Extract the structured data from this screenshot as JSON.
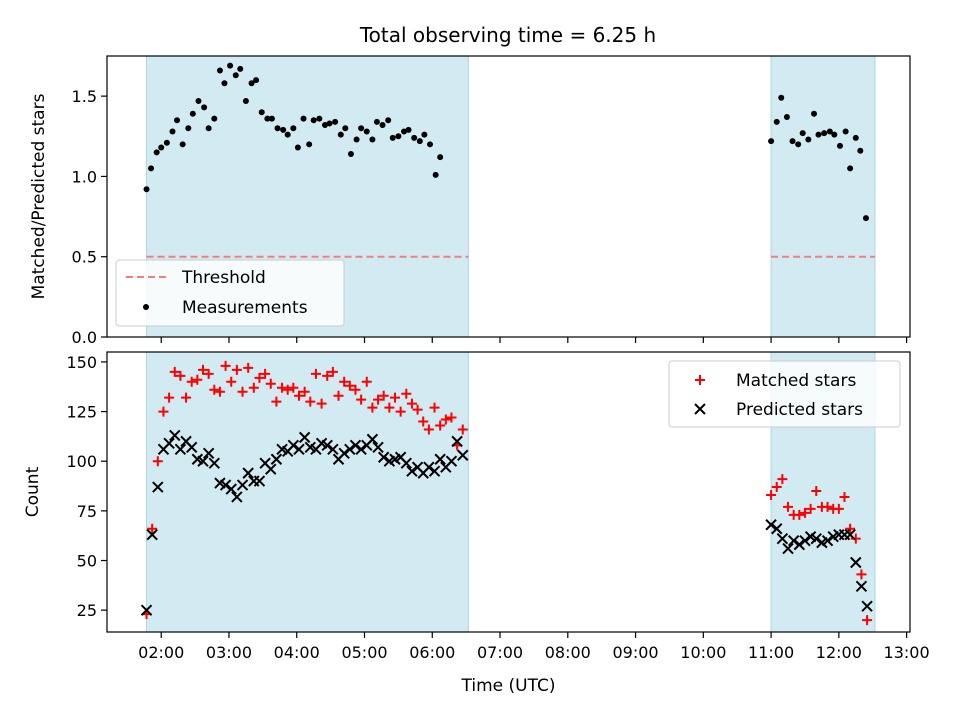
{
  "title": "Total observing time = 6.25 h",
  "colors": {
    "band": "#add8e6",
    "threshold": "#f08080",
    "matched": "#ff0000",
    "predicted": "#000000"
  },
  "chart_data": [
    {
      "type": "scatter",
      "panel": "top",
      "xlabel": "",
      "ylabel": "Matched/Predicted stars",
      "xlim": [
        "01:12",
        "13:03"
      ],
      "ylim": [
        0,
        1.75
      ],
      "yticks": [
        0.0,
        0.5,
        1.0,
        1.5
      ],
      "ytick_labels": [
        "0.0",
        "0.5",
        "1.0",
        "1.5"
      ],
      "shaded_intervals": [
        [
          "01:47",
          "06:32"
        ],
        [
          "11:00",
          "12:32"
        ]
      ],
      "legend": {
        "position": "lower-left"
      },
      "series": [
        {
          "name": "Threshold",
          "kind": "dashed-line",
          "segments": [
            {
              "x": [
                "01:47",
                "06:32"
              ],
              "y": [
                0.5,
                0.5
              ]
            },
            {
              "x": [
                "11:00",
                "12:32"
              ],
              "y": [
                0.5,
                0.5
              ]
            }
          ]
        },
        {
          "name": "Measurements",
          "kind": "dot",
          "points": [
            [
              "01:47",
              0.92
            ],
            [
              "01:51",
              1.05
            ],
            [
              "01:56",
              1.15
            ],
            [
              "02:00",
              1.18
            ],
            [
              "02:05",
              1.21
            ],
            [
              "02:10",
              1.28
            ],
            [
              "02:14",
              1.35
            ],
            [
              "02:19",
              1.2
            ],
            [
              "02:24",
              1.3
            ],
            [
              "02:28",
              1.39
            ],
            [
              "02:33",
              1.47
            ],
            [
              "02:38",
              1.43
            ],
            [
              "02:42",
              1.3
            ],
            [
              "02:47",
              1.36
            ],
            [
              "02:52",
              1.66
            ],
            [
              "02:56",
              1.58
            ],
            [
              "03:01",
              1.69
            ],
            [
              "03:06",
              1.63
            ],
            [
              "03:10",
              1.67
            ],
            [
              "03:15",
              1.47
            ],
            [
              "03:20",
              1.58
            ],
            [
              "03:24",
              1.6
            ],
            [
              "03:29",
              1.4
            ],
            [
              "03:34",
              1.36
            ],
            [
              "03:38",
              1.36
            ],
            [
              "03:43",
              1.3
            ],
            [
              "03:48",
              1.29
            ],
            [
              "03:52",
              1.26
            ],
            [
              "03:57",
              1.3
            ],
            [
              "04:01",
              1.18
            ],
            [
              "04:06",
              1.36
            ],
            [
              "04:11",
              1.2
            ],
            [
              "04:15",
              1.35
            ],
            [
              "04:20",
              1.36
            ],
            [
              "04:25",
              1.32
            ],
            [
              "04:29",
              1.33
            ],
            [
              "04:34",
              1.34
            ],
            [
              "04:39",
              1.26
            ],
            [
              "04:43",
              1.3
            ],
            [
              "04:48",
              1.14
            ],
            [
              "04:53",
              1.23
            ],
            [
              "04:57",
              1.3
            ],
            [
              "05:02",
              1.28
            ],
            [
              "05:07",
              1.23
            ],
            [
              "05:11",
              1.34
            ],
            [
              "05:16",
              1.32
            ],
            [
              "05:21",
              1.35
            ],
            [
              "05:25",
              1.24
            ],
            [
              "05:30",
              1.25
            ],
            [
              "05:35",
              1.28
            ],
            [
              "05:39",
              1.29
            ],
            [
              "05:44",
              1.24
            ],
            [
              "05:49",
              1.22
            ],
            [
              "05:53",
              1.26
            ],
            [
              "05:58",
              1.2
            ],
            [
              "06:03",
              1.01
            ],
            [
              "06:07",
              1.12
            ],
            [
              "11:00",
              1.22
            ],
            [
              "11:05",
              1.34
            ],
            [
              "11:09",
              1.49
            ],
            [
              "11:14",
              1.37
            ],
            [
              "11:19",
              1.22
            ],
            [
              "11:24",
              1.2
            ],
            [
              "11:28",
              1.27
            ],
            [
              "11:33",
              1.23
            ],
            [
              "11:38",
              1.39
            ],
            [
              "11:42",
              1.26
            ],
            [
              "11:47",
              1.27
            ],
            [
              "11:52",
              1.28
            ],
            [
              "11:56",
              1.26
            ],
            [
              "12:01",
              1.19
            ],
            [
              "12:06",
              1.28
            ],
            [
              "12:10",
              1.05
            ],
            [
              "12:15",
              1.24
            ],
            [
              "12:19",
              1.16
            ],
            [
              "12:24",
              0.74
            ]
          ]
        }
      ]
    },
    {
      "type": "scatter",
      "panel": "bottom",
      "xlabel": "Time (UTC)",
      "ylabel": "Count",
      "xlim": [
        "01:12",
        "13:03"
      ],
      "ylim": [
        14,
        155
      ],
      "xticks": [
        "02:00",
        "03:00",
        "04:00",
        "05:00",
        "06:00",
        "07:00",
        "08:00",
        "09:00",
        "10:00",
        "11:00",
        "12:00",
        "13:00"
      ],
      "yticks": [
        25,
        50,
        75,
        100,
        125,
        150
      ],
      "ytick_labels": [
        "25",
        "50",
        "75",
        "100",
        "125",
        "150"
      ],
      "shaded_intervals": [
        [
          "01:47",
          "06:32"
        ],
        [
          "11:00",
          "12:32"
        ]
      ],
      "legend": {
        "position": "top-right"
      },
      "series": [
        {
          "name": "Matched stars",
          "kind": "plus",
          "points": [
            [
              "01:47",
              23
            ],
            [
              "01:52",
              66
            ],
            [
              "01:57",
              100
            ],
            [
              "02:02",
              125
            ],
            [
              "02:07",
              132
            ],
            [
              "02:12",
              145
            ],
            [
              "02:17",
              143
            ],
            [
              "02:22",
              132
            ],
            [
              "02:27",
              140
            ],
            [
              "02:32",
              141
            ],
            [
              "02:37",
              146
            ],
            [
              "02:42",
              144
            ],
            [
              "02:47",
              136
            ],
            [
              "02:52",
              135
            ],
            [
              "02:57",
              148
            ],
            [
              "03:02",
              140
            ],
            [
              "03:07",
              146
            ],
            [
              "03:12",
              135
            ],
            [
              "03:17",
              147
            ],
            [
              "03:22",
              137
            ],
            [
              "03:27",
              142
            ],
            [
              "03:32",
              144
            ],
            [
              "03:37",
              139
            ],
            [
              "03:42",
              130
            ],
            [
              "03:47",
              137
            ],
            [
              "03:52",
              136
            ],
            [
              "03:57",
              137
            ],
            [
              "04:02",
              133
            ],
            [
              "04:07",
              135
            ],
            [
              "04:12",
              130
            ],
            [
              "04:17",
              144
            ],
            [
              "04:22",
              129
            ],
            [
              "04:27",
              143
            ],
            [
              "04:32",
              145
            ],
            [
              "04:37",
              133
            ],
            [
              "04:42",
              140
            ],
            [
              "04:47",
              138
            ],
            [
              "04:52",
              136
            ],
            [
              "04:57",
              131
            ],
            [
              "05:02",
              140
            ],
            [
              "05:07",
              127
            ],
            [
              "05:12",
              131
            ],
            [
              "05:17",
              133
            ],
            [
              "05:22",
              127
            ],
            [
              "05:27",
              132
            ],
            [
              "05:32",
              125
            ],
            [
              "05:37",
              134
            ],
            [
              "05:42",
              129
            ],
            [
              "05:47",
              126
            ],
            [
              "05:52",
              120
            ],
            [
              "05:57",
              116
            ],
            [
              "06:02",
              127
            ],
            [
              "06:07",
              118
            ],
            [
              "06:12",
              121
            ],
            [
              "06:17",
              122
            ],
            [
              "06:22",
              108
            ],
            [
              "06:27",
              116
            ],
            [
              "11:00",
              83
            ],
            [
              "11:05",
              87
            ],
            [
              "11:10",
              91
            ],
            [
              "11:15",
              77
            ],
            [
              "11:20",
              73
            ],
            [
              "11:25",
              73
            ],
            [
              "11:30",
              74
            ],
            [
              "11:35",
              76
            ],
            [
              "11:40",
              85
            ],
            [
              "11:45",
              77
            ],
            [
              "11:50",
              77
            ],
            [
              "11:55",
              76
            ],
            [
              "12:00",
              76
            ],
            [
              "12:05",
              82
            ],
            [
              "12:10",
              66
            ],
            [
              "12:15",
              61
            ],
            [
              "12:20",
              43
            ],
            [
              "12:25",
              20
            ]
          ]
        },
        {
          "name": "Predicted stars",
          "kind": "x",
          "points": [
            [
              "01:47",
              25
            ],
            [
              "01:52",
              63
            ],
            [
              "01:57",
              87
            ],
            [
              "02:02",
              106
            ],
            [
              "02:07",
              109
            ],
            [
              "02:12",
              113
            ],
            [
              "02:17",
              106
            ],
            [
              "02:22",
              110
            ],
            [
              "02:27",
              107
            ],
            [
              "02:32",
              101
            ],
            [
              "02:37",
              100
            ],
            [
              "02:42",
              104
            ],
            [
              "02:47",
              99
            ],
            [
              "02:52",
              89
            ],
            [
              "02:57",
              88
            ],
            [
              "03:02",
              86
            ],
            [
              "03:07",
              82
            ],
            [
              "03:12",
              88
            ],
            [
              "03:17",
              94
            ],
            [
              "03:22",
              90
            ],
            [
              "03:27",
              90
            ],
            [
              "03:32",
              99
            ],
            [
              "03:37",
              96
            ],
            [
              "03:42",
              101
            ],
            [
              "03:47",
              106
            ],
            [
              "03:52",
              105
            ],
            [
              "03:57",
              108
            ],
            [
              "04:02",
              106
            ],
            [
              "04:07",
              112
            ],
            [
              "04:12",
              107
            ],
            [
              "04:17",
              106
            ],
            [
              "04:22",
              109
            ],
            [
              "04:27",
              108
            ],
            [
              "04:32",
              106
            ],
            [
              "04:37",
              101
            ],
            [
              "04:42",
              104
            ],
            [
              "04:47",
              106
            ],
            [
              "04:52",
              108
            ],
            [
              "04:57",
              106
            ],
            [
              "05:02",
              108
            ],
            [
              "05:07",
              111
            ],
            [
              "05:12",
              107
            ],
            [
              "05:17",
              102
            ],
            [
              "05:22",
              100
            ],
            [
              "05:27",
              101
            ],
            [
              "05:32",
              102
            ],
            [
              "05:37",
              99
            ],
            [
              "05:42",
              95
            ],
            [
              "05:47",
              97
            ],
            [
              "05:52",
              94
            ],
            [
              "05:57",
              97
            ],
            [
              "06:02",
              95
            ],
            [
              "06:07",
              101
            ],
            [
              "06:12",
              97
            ],
            [
              "06:17",
              100
            ],
            [
              "06:22",
              110
            ],
            [
              "06:27",
              103
            ],
            [
              "11:00",
              68
            ],
            [
              "11:05",
              66
            ],
            [
              "11:10",
              61
            ],
            [
              "11:15",
              56
            ],
            [
              "11:20",
              60
            ],
            [
              "11:25",
              58
            ],
            [
              "11:30",
              60
            ],
            [
              "11:35",
              62
            ],
            [
              "11:40",
              61
            ],
            [
              "11:45",
              59
            ],
            [
              "11:50",
              60
            ],
            [
              "11:55",
              62
            ],
            [
              "12:00",
              63
            ],
            [
              "12:05",
              63
            ],
            [
              "12:10",
              63
            ],
            [
              "12:15",
              49
            ],
            [
              "12:20",
              37
            ],
            [
              "12:25",
              27
            ]
          ]
        }
      ]
    }
  ]
}
